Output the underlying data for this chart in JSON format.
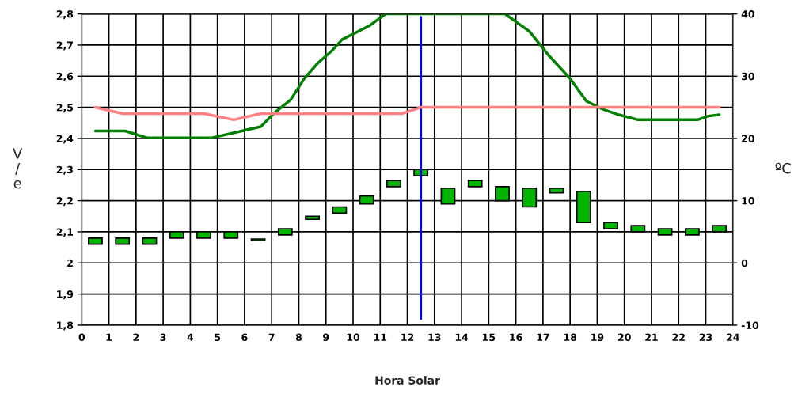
{
  "chart_data": {
    "type": "bar",
    "xlabel": "Hora Solar",
    "ylabel": "V/e",
    "y2label": "ºC",
    "xlim": [
      0,
      24
    ],
    "xticks": [
      0,
      1,
      2,
      3,
      4,
      5,
      6,
      7,
      8,
      9,
      10,
      11,
      12,
      13,
      14,
      15,
      16,
      17,
      18,
      19,
      20,
      21,
      22,
      23,
      24
    ],
    "ylim": [
      1.8,
      2.8
    ],
    "yticks": [
      {
        "value": 1.8,
        "label": "1,8"
      },
      {
        "value": 1.9,
        "label": "1,9"
      },
      {
        "value": 2,
        "label": "2"
      },
      {
        "value": 2.1,
        "label": "2,1"
      },
      {
        "value": 2.2,
        "label": "2,2"
      },
      {
        "value": 2.3,
        "label": "2,3"
      },
      {
        "value": 2.4,
        "label": "2,4"
      },
      {
        "value": 2.5,
        "label": "2,5"
      },
      {
        "value": 2.6,
        "label": "2,6"
      },
      {
        "value": 2.7,
        "label": "2,7"
      },
      {
        "value": 2.8,
        "label": "2,8"
      }
    ],
    "y2lim": [
      -10,
      40
    ],
    "y2ticks": [
      -10,
      0,
      10,
      20,
      30,
      40
    ],
    "grid": true,
    "legend": false,
    "series": [
      {
        "color": "#00b400",
        "x": [
          0.5,
          1.5,
          2.5,
          3.5,
          4.5,
          5.5,
          6.5,
          7.5,
          8.5,
          9.5,
          10.5,
          11.5,
          12.5,
          13.5,
          14.5,
          15.5,
          16.5,
          17.5,
          18.5,
          19.5,
          20.5,
          21.5,
          22.5,
          23.5
        ],
        "base": [
          2.06,
          2.06,
          2.06,
          2.08,
          2.08,
          2.08,
          2.072,
          2.09,
          2.14,
          2.16,
          2.19,
          2.245,
          2.28,
          2.19,
          2.245,
          2.2,
          2.18,
          2.225,
          2.13,
          2.11,
          2.1,
          2.09,
          2.09,
          2.1
        ],
        "values": [
          0.02,
          0.02,
          0.02,
          0.02,
          0.02,
          0.02,
          0.005,
          0.02,
          0.01,
          0.02,
          0.025,
          0.02,
          0.02,
          0.05,
          0.02,
          0.045,
          0.06,
          0.015,
          0.1,
          0.02,
          0.02,
          0.02,
          0.02,
          0.02
        ]
      },
      {
        "type": "line",
        "axis": "y2",
        "color": "#008000",
        "x": [
          0.5,
          1.6,
          2.4,
          4.8,
          5.8,
          6.6,
          7.1,
          7.7,
          8.2,
          8.7,
          9.2,
          9.6,
          10.6,
          11.2,
          15.6,
          16.5,
          17.2,
          18,
          18.6,
          19.2,
          19.8,
          20.5,
          22.7,
          23.1,
          23.5
        ],
        "values": [
          21.2,
          21.2,
          20.1,
          20.1,
          21.1,
          21.9,
          24.1,
          26.2,
          29.6,
          32.1,
          34,
          35.9,
          38.1,
          40,
          40,
          37.2,
          33.4,
          29.6,
          26,
          24.7,
          23.8,
          23,
          23,
          23.6,
          23.8
        ]
      },
      {
        "type": "line",
        "axis": "y2",
        "color": "#ff8080",
        "x": [
          0.5,
          1.5,
          4.5,
          5.6,
          6.6,
          11.8,
          12.5,
          23.5
        ],
        "values": [
          25,
          24,
          24,
          23,
          24,
          24,
          25,
          25
        ]
      }
    ],
    "ref_lines": [
      {
        "axis": "x",
        "value": 12.5,
        "color": "#0000ff"
      }
    ]
  }
}
